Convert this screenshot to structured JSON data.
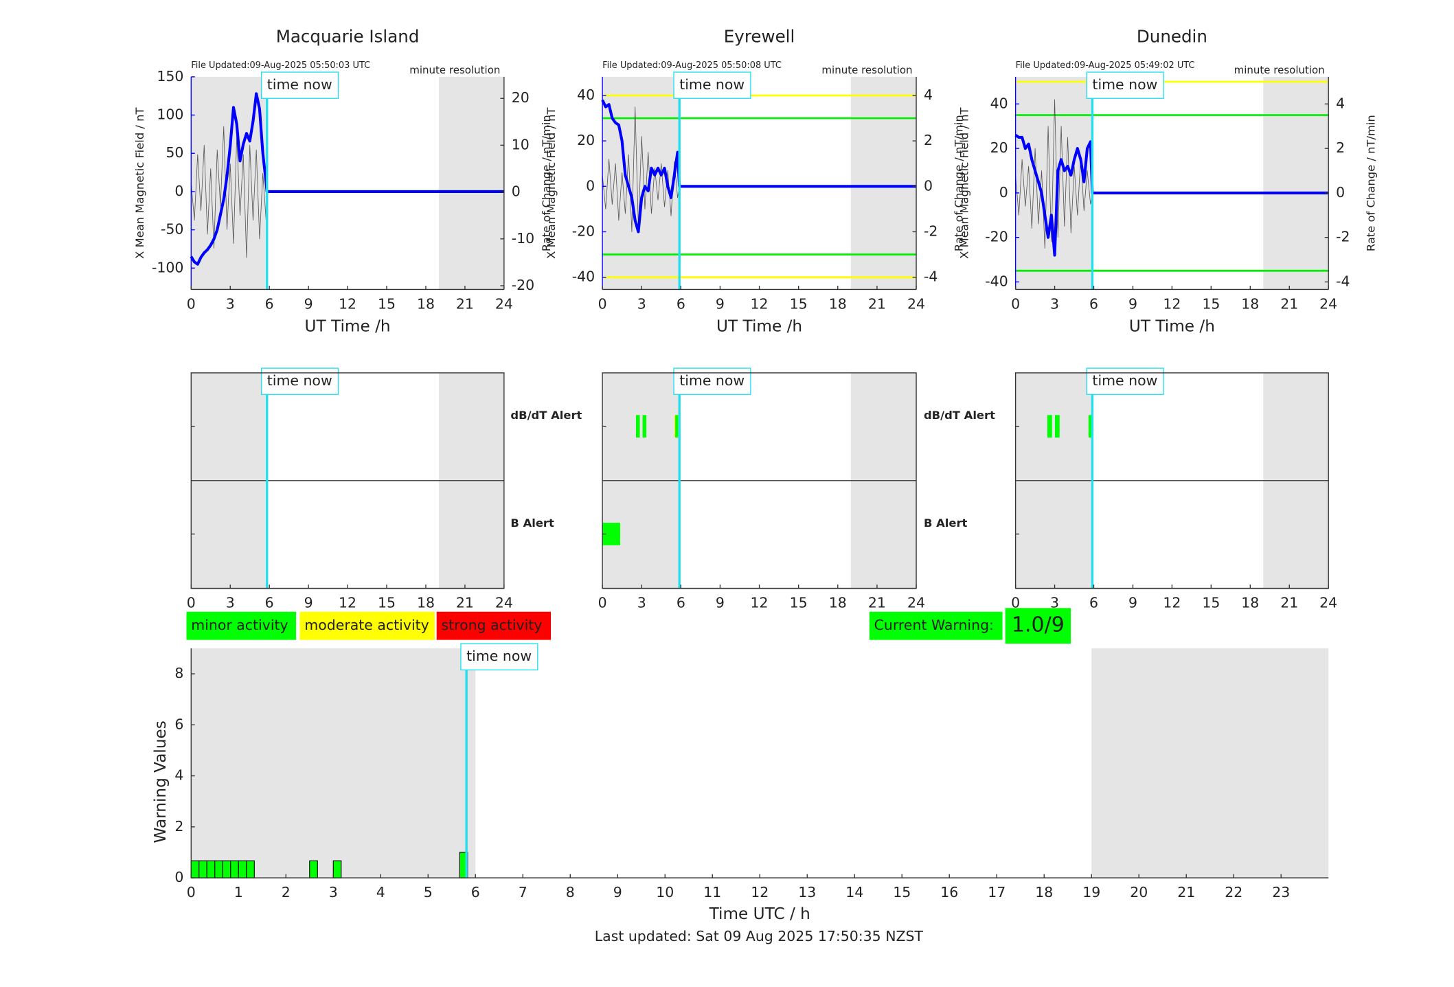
{
  "chart_data": [
    {
      "type": "line",
      "title": "Macquarie Island",
      "file_updated": "File Updated:09-Aug-2025 05:50:03 UTC",
      "resolution": "minute resolution",
      "xlabel": "UT Time /h",
      "ylabel": "X Mean Magnetic Field / nT",
      "y2label": "Rate of Change / nT/min",
      "xlim": [
        0,
        24
      ],
      "xticks": [
        0,
        3,
        6,
        9,
        12,
        15,
        18,
        21,
        24
      ],
      "ylim": [
        -128,
        150
      ],
      "yticks": [
        -100,
        -50,
        0,
        50,
        100,
        150
      ],
      "y2lim": [
        -20.8,
        24.6
      ],
      "y2ticks": [
        -20,
        -10,
        0,
        10,
        20
      ],
      "time_now": 5.82,
      "time_now_label": "time now",
      "shaded": [
        [
          0,
          5.82
        ],
        [
          19,
          24
        ]
      ],
      "thresholds": [],
      "x": [
        0,
        0.25,
        0.5,
        0.75,
        1,
        1.25,
        1.5,
        1.75,
        2,
        2.25,
        2.5,
        2.75,
        3,
        3.25,
        3.5,
        3.75,
        4,
        4.25,
        4.5,
        4.75,
        5,
        5.25,
        5.5,
        5.75,
        5.82,
        24
      ],
      "series": [
        {
          "color": "#555555",
          "axis": "y2",
          "values": [
            2,
            -6,
            8,
            -4,
            10,
            -9,
            5,
            -12,
            9,
            -3,
            14,
            -8,
            6,
            -11,
            12,
            -5,
            8,
            -14,
            10,
            -6,
            9,
            -10,
            4,
            -6,
            0,
            0
          ]
        },
        {
          "color": "#0000ff",
          "values": [
            -85,
            -92,
            -95,
            -86,
            -80,
            -76,
            -70,
            -62,
            -50,
            -30,
            -10,
            20,
            60,
            110,
            88,
            40,
            62,
            76,
            66,
            92,
            128,
            108,
            50,
            12,
            0,
            0
          ]
        }
      ]
    },
    {
      "type": "line",
      "title": "Eyrewell",
      "file_updated": "File Updated:09-Aug-2025 05:50:08 UTC",
      "resolution": "minute resolution",
      "xlabel": "UT Time /h",
      "ylabel": "X Mean Magnetic Field / nT",
      "y2label": "Rate of Change / nT/min",
      "xlim": [
        0,
        24
      ],
      "xticks": [
        0,
        3,
        6,
        9,
        12,
        15,
        18,
        21,
        24
      ],
      "ylim": [
        -45.4,
        48.2
      ],
      "yticks": [
        -40,
        -20,
        0,
        20,
        40
      ],
      "y2lim": [
        -4.54,
        4.82
      ],
      "y2ticks": [
        -4,
        -2,
        0,
        2,
        4
      ],
      "time_now": 5.89,
      "time_now_label": "time now",
      "shaded": [
        [
          0,
          5.89
        ],
        [
          19,
          24
        ]
      ],
      "thresholds": [
        {
          "value": 40,
          "color": "#ffff00"
        },
        {
          "value": 30,
          "color": "#00ee00"
        },
        {
          "value": -30,
          "color": "#00ee00"
        },
        {
          "value": -40,
          "color": "#ffff00"
        }
      ],
      "x": [
        0,
        0.25,
        0.5,
        0.75,
        1,
        1.25,
        1.5,
        1.75,
        2,
        2.25,
        2.5,
        2.75,
        3,
        3.25,
        3.5,
        3.75,
        4,
        4.25,
        4.5,
        4.75,
        5,
        5.25,
        5.5,
        5.75,
        5.89,
        24
      ],
      "series": [
        {
          "color": "#555555",
          "axis": "y2",
          "values": [
            0.5,
            -1,
            1.2,
            -0.8,
            1,
            -1.5,
            0.6,
            -1.2,
            1.4,
            -2,
            3.5,
            -1.8,
            2.2,
            -1,
            1.5,
            -1.2,
            0.8,
            -0.6,
            1,
            -0.9,
            0.7,
            -1.3,
            1.1,
            -0.5,
            0,
            0
          ]
        },
        {
          "color": "#0000ff",
          "values": [
            38,
            35,
            36,
            30,
            28,
            27,
            20,
            5,
            0,
            -5,
            -15,
            -20,
            -5,
            0,
            -2,
            8,
            5,
            8,
            5,
            8,
            0,
            -5,
            5,
            15,
            0,
            0
          ]
        }
      ]
    },
    {
      "type": "line",
      "title": "Dunedin",
      "file_updated": "File Updated:09-Aug-2025 05:49:02 UTC",
      "resolution": "minute resolution",
      "xlabel": "UT Time /h",
      "ylabel": "X Mean Magnetic Field / nT",
      "y2label": "Rate of Change / nT/min",
      "xlim": [
        0,
        24
      ],
      "xticks": [
        0,
        3,
        6,
        9,
        12,
        15,
        18,
        21,
        24
      ],
      "ylim": [
        -43.4,
        52.2
      ],
      "yticks": [
        -40,
        -20,
        0,
        20,
        40
      ],
      "y2lim": [
        -4.34,
        5.22
      ],
      "y2ticks": [
        -4,
        -2,
        0,
        2,
        4
      ],
      "time_now": 5.89,
      "time_now_label": "time now",
      "shaded": [
        [
          0,
          5.89
        ],
        [
          19,
          24
        ]
      ],
      "thresholds": [
        {
          "value": 50,
          "color": "#ffff00"
        },
        {
          "value": 35,
          "color": "#00ee00"
        },
        {
          "value": -35,
          "color": "#00ee00"
        }
      ],
      "x": [
        0,
        0.25,
        0.5,
        0.75,
        1,
        1.25,
        1.5,
        1.75,
        2,
        2.25,
        2.5,
        2.75,
        3,
        3.25,
        3.5,
        3.75,
        4,
        4.25,
        4.5,
        4.75,
        5,
        5.25,
        5.5,
        5.75,
        5.89,
        24
      ],
      "series": [
        {
          "color": "#555555",
          "axis": "y2",
          "values": [
            0.8,
            -1,
            1.5,
            -0.6,
            1.2,
            -1.6,
            2,
            -1.4,
            1,
            -2.5,
            3,
            -2.2,
            4.2,
            -2,
            3,
            -1.5,
            2.5,
            -1.8,
            1.2,
            -1,
            1.6,
            -0.8,
            1,
            -0.5,
            0,
            0
          ]
        },
        {
          "color": "#0000ff",
          "values": [
            26,
            25,
            25,
            20,
            22,
            15,
            10,
            5,
            0,
            -10,
            -20,
            -10,
            -28,
            10,
            15,
            10,
            12,
            8,
            15,
            20,
            15,
            5,
            20,
            23,
            0,
            0
          ]
        }
      ]
    },
    {
      "type": "alert",
      "xlim": [
        0,
        24
      ],
      "xticks": [
        0,
        3,
        6,
        9,
        12,
        15,
        18,
        21,
        24
      ],
      "time_now": 5.82,
      "time_now_label": "time now",
      "shaded": [
        [
          0,
          5.82
        ],
        [
          19,
          24
        ]
      ],
      "rows": [
        {
          "alerts": []
        },
        {
          "alerts": []
        }
      ]
    },
    {
      "type": "alert",
      "xlim": [
        0,
        24
      ],
      "xticks": [
        0,
        3,
        6,
        9,
        12,
        15,
        18,
        21,
        24
      ],
      "time_now": 5.89,
      "time_now_label": "time now",
      "shaded": [
        [
          0,
          5.89
        ],
        [
          19,
          24
        ]
      ],
      "rows": [
        {
          "label": "dB/dT Alert",
          "color": "#000000",
          "alerts": [
            {
              "start": 2.57,
              "end": 2.86,
              "color": "#00ff00"
            },
            {
              "start": 3.07,
              "end": 3.36,
              "color": "#00ff00"
            },
            {
              "start": 5.5,
              "end": 5.86,
              "color": "#ffff00"
            },
            {
              "start": 5.57,
              "end": 5.79,
              "color": "#00ff00"
            }
          ]
        },
        {
          "label": "B Alert",
          "color": "#0000ff",
          "alerts": [
            {
              "start": 0,
              "end": 1.36,
              "color": "#00ff00"
            }
          ]
        }
      ]
    },
    {
      "type": "alert",
      "xlim": [
        0,
        24
      ],
      "xticks": [
        0,
        3,
        6,
        9,
        12,
        15,
        18,
        21,
        24
      ],
      "time_now": 5.89,
      "time_now_label": "time now",
      "shaded": [
        [
          0,
          5.89
        ],
        [
          19,
          24
        ]
      ],
      "rows": [
        {
          "label": "dB/dT Alert",
          "color": "#000000",
          "alerts": [
            {
              "start": 2.44,
              "end": 2.8,
              "color": "#00ff00"
            },
            {
              "start": 3.02,
              "end": 3.38,
              "color": "#00ff00"
            },
            {
              "start": 5.6,
              "end": 5.89,
              "color": "#00ff00"
            }
          ]
        },
        {
          "label": "B Alert",
          "color": "#0000ff",
          "alerts": []
        }
      ]
    },
    {
      "type": "bar",
      "xlabel": "Time UTC / h",
      "ylabel": "Warning Values",
      "xlim": [
        0,
        24
      ],
      "xticks": [
        0,
        1,
        2,
        3,
        4,
        5,
        6,
        7,
        8,
        9,
        10,
        11,
        12,
        13,
        14,
        15,
        16,
        17,
        18,
        19,
        20,
        21,
        22,
        23
      ],
      "ylim": [
        0,
        9
      ],
      "yticks": [
        0,
        2,
        4,
        6,
        8
      ],
      "time_now": 5.81,
      "time_now_label": "time now",
      "shaded": [
        [
          0,
          6
        ],
        [
          19,
          24
        ]
      ],
      "color": "#00ff00",
      "bar_width": 0.1667,
      "x": [
        0,
        0.1667,
        0.3333,
        0.5,
        0.6667,
        0.8333,
        1,
        1.1667,
        2.5,
        3,
        5.6667
      ],
      "values": [
        0.67,
        0.67,
        0.67,
        0.67,
        0.67,
        0.67,
        0.67,
        0.67,
        0.67,
        0.67,
        1
      ]
    }
  ],
  "legend": [
    {
      "label": "minor activity",
      "color": "#00ff00"
    },
    {
      "label": "moderate activity",
      "color": "#ffff00"
    },
    {
      "label": "strong activity",
      "color": "#ff0000"
    }
  ],
  "current_warning": {
    "label": "Current Warning:",
    "value": "1.0/9",
    "color": "#00ff00"
  },
  "footer": "Last updated: Sat 09 Aug 2025 17:50:35 NZST"
}
